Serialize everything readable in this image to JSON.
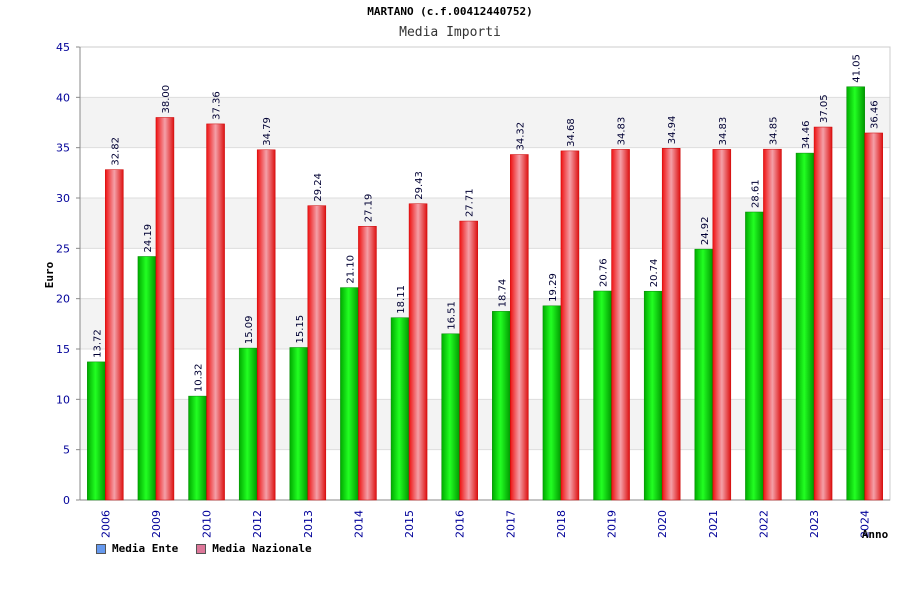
{
  "chart_data": {
    "type": "bar",
    "title": "MARTANO (c.f.00412440752)",
    "subtitle": "Media Importi",
    "xlabel": "Anno",
    "ylabel": "Euro",
    "ylim": [
      0,
      45
    ],
    "yticks": [
      0,
      5,
      10,
      15,
      20,
      25,
      30,
      35,
      40,
      45
    ],
    "grid": true,
    "legend_position": "bottom-left",
    "categories": [
      "2006",
      "2009",
      "2010",
      "2012",
      "2013",
      "2014",
      "2015",
      "2016",
      "2017",
      "2018",
      "2019",
      "2020",
      "2021",
      "2022",
      "2023",
      "2024"
    ],
    "series": [
      {
        "name": "Media Ente",
        "color": "#00bb00",
        "legend_color": "#6699ee",
        "values": [
          13.72,
          24.19,
          10.32,
          15.09,
          15.15,
          21.1,
          18.11,
          16.51,
          18.74,
          19.29,
          20.76,
          20.74,
          24.92,
          28.61,
          34.46,
          41.05
        ],
        "labels": [
          "13.72",
          "24.19",
          "10.32",
          "15.09",
          "15.15",
          "21.10",
          "18.11",
          "16.51",
          "18.74",
          "19.29",
          "20.76",
          "20.74",
          "24.92",
          "28.61",
          "34.46",
          "41.05"
        ]
      },
      {
        "name": "Media Nazionale",
        "color": "#ee2222",
        "legend_color": "#dd7799",
        "values": [
          32.82,
          38.0,
          37.36,
          34.79,
          29.24,
          27.19,
          29.43,
          27.71,
          34.32,
          34.68,
          34.83,
          34.94,
          34.83,
          34.85,
          37.05,
          36.46
        ],
        "labels": [
          "32.82",
          "38.00",
          "37.36",
          "34.79",
          "29.24",
          "27.19",
          "29.43",
          "27.71",
          "34.32",
          "34.68",
          "34.83",
          "34.94",
          "34.83",
          "34.85",
          "37.05",
          "36.46"
        ]
      }
    ]
  }
}
